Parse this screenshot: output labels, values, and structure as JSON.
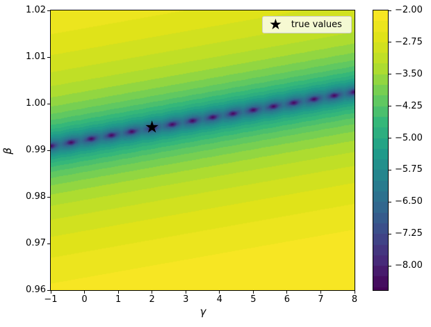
{
  "chart_data": {
    "type": "contourf",
    "title": "",
    "xlabel": "γ",
    "ylabel": "β",
    "xlim": [
      -1,
      8
    ],
    "ylim": [
      0.96,
      1.02
    ],
    "grid": false,
    "legend": {
      "position": "upper right",
      "entries": [
        {
          "marker": "star",
          "glyph": "★",
          "label": "true values"
        }
      ]
    },
    "true_values": {
      "gamma": 2.0,
      "beta": 0.995
    },
    "xticks": {
      "values": [
        -1,
        0,
        1,
        2,
        3,
        4,
        5,
        6,
        7,
        8
      ],
      "labels": [
        "−1",
        "0",
        "1",
        "2",
        "3",
        "4",
        "5",
        "6",
        "7",
        "8"
      ]
    },
    "yticks": {
      "values": [
        1.02,
        1.01,
        1.0,
        0.99,
        0.98,
        0.97,
        0.96
      ],
      "labels": [
        "1.02",
        "1.01",
        "1.00",
        "0.99",
        "0.98",
        "0.97",
        "0.96"
      ]
    },
    "colorbar": {
      "vmin": -8.57,
      "vmax": -2.0,
      "level_start": -8.5,
      "level_step": 0.25,
      "ticks": {
        "values": [
          -2.0,
          -2.75,
          -3.5,
          -4.25,
          -5.0,
          -5.75,
          -6.5,
          -7.25,
          -8.0
        ],
        "labels": [
          "−2.00",
          "−2.75",
          "−3.50",
          "−4.25",
          "−5.00",
          "−5.75",
          "−6.50",
          "−7.25",
          "−8.00"
        ]
      }
    },
    "colormap": {
      "name": "viridis",
      "stops": [
        "#440154",
        "#482878",
        "#3e4989",
        "#31688e",
        "#26828e",
        "#1f9e89",
        "#35b779",
        "#6dcd59",
        "#b4de2c",
        "#dfe318",
        "#fde725"
      ]
    },
    "surface_model": {
      "formula": "f(g,b) = clamp(A*log10(sqrt((b-valley(g))^2 + (gscale*dist_to_nearest_sample_gamma)^2) + eps) + B, vmin, vmax)",
      "valley_beta_at_gamma_minus1": 0.9909,
      "valley_slope_per_gamma": 0.0012889,
      "A": 2.78,
      "B": 2.0,
      "eps": 8e-05,
      "gscale": 0.003,
      "sample_dot_gamma_start": -1.0,
      "sample_dot_gamma_step": 0.6,
      "sample_dot_count": 16,
      "dot_color": "#48065c"
    }
  },
  "marker": {
    "glyph": "★",
    "color": "#000000"
  }
}
